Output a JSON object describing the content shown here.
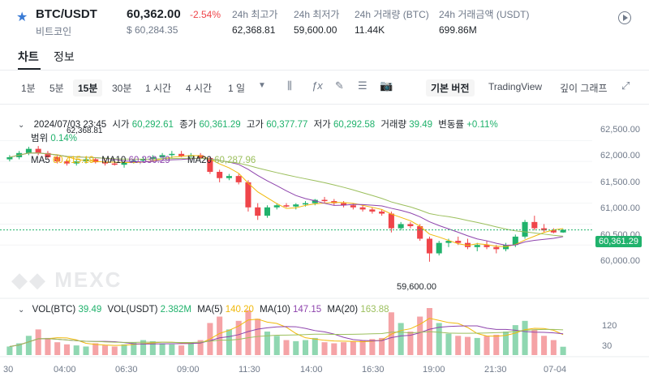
{
  "header": {
    "pair": "BTC/USDT",
    "sub_name": "비트코인",
    "price": "60,362.00",
    "change": "-2.54%",
    "usd_price": "$ 60,284.35",
    "stats": [
      {
        "label": "24h 최고가",
        "value": "62,368.81"
      },
      {
        "label": "24h 최저가",
        "value": "59,600.00"
      },
      {
        "label": "24h 거래량 (BTC)",
        "value": "11.44K"
      },
      {
        "label": "24h 거래금액 (USDT)",
        "value": "699.86M"
      }
    ],
    "star_icon": "star-icon",
    "play_icon": "play-circle-icon"
  },
  "tabs": [
    {
      "label": "차트",
      "active": true
    },
    {
      "label": "정보",
      "active": false
    }
  ],
  "toolbar": {
    "intervals": [
      "1분",
      "5분",
      "15분",
      "30분",
      "1 시간",
      "4 시간",
      "1 일"
    ],
    "active_interval": "15분",
    "views": [
      "기본 버전",
      "TradingView",
      "깊이 그래프"
    ],
    "active_view": "기본 버전"
  },
  "info": {
    "datetime": "2024/07/03 23:45",
    "open_label": "시가",
    "open": "60,292.61",
    "close_label": "종가",
    "close": "60,361.29",
    "high_label": "고가",
    "high": "60,377.77",
    "low_label": "저가",
    "low": "60,292.58",
    "vol_label": "거래량",
    "vol": "39.49",
    "chg_label": "변동률",
    "chg": "+0.11%",
    "range_label": "범위",
    "range": "0.14%",
    "ma5_label": "MA5",
    "ma5": "60,415.19",
    "ma10_label": "MA10",
    "ma10": "60,330.29",
    "ma20_label": "MA20",
    "ma20": "60,287.96"
  },
  "vol_info": {
    "vol_btc_label": "VOL(BTC)",
    "vol_btc": "39.49",
    "vol_usdt_label": "VOL(USDT)",
    "vol_usdt": "2.382M",
    "ma5_label": "MA(5)",
    "ma5": "140.20",
    "ma10_label": "MA(10)",
    "ma10": "147.15",
    "ma20_label": "MA(20)",
    "ma20": "163.88"
  },
  "price_axis": [
    "62,500.00",
    "62,000.00",
    "61,500.00",
    "61,000.00",
    "60,500.00",
    "60,000.00"
  ],
  "current_price_tag": "60,361.29",
  "high_marker": "62,368.81",
  "low_marker": "59,600.00",
  "vol_axis": [
    "120",
    "30"
  ],
  "time_axis": [
    "30",
    "04:00",
    "06:30",
    "09:00",
    "11:30",
    "14:00",
    "16:30",
    "19:00",
    "21:30",
    "07-04"
  ],
  "watermark": "MEXC",
  "colors": {
    "up": "#20b26c",
    "down": "#ef454a",
    "ma5": "#f0b90b",
    "ma10": "#8e44ad",
    "ma20": "#9bbf5c"
  },
  "chart_data": {
    "type": "candlestick",
    "ylim": [
      59500,
      62700
    ],
    "candles": [
      [
        62050,
        62150,
        62000,
        62100
      ],
      [
        62100,
        62250,
        62050,
        62200
      ],
      [
        62200,
        62350,
        62150,
        62300
      ],
      [
        62300,
        62368,
        62150,
        62200
      ],
      [
        62200,
        62250,
        62050,
        62100
      ],
      [
        62100,
        62150,
        61950,
        62000
      ],
      [
        62000,
        62050,
        61900,
        61950
      ],
      [
        61950,
        62050,
        61900,
        62000
      ],
      [
        62000,
        62100,
        61950,
        62050
      ],
      [
        62050,
        62100,
        61950,
        61980
      ],
      [
        61980,
        62050,
        61900,
        61950
      ],
      [
        61950,
        62000,
        61900,
        61920
      ],
      [
        61920,
        62000,
        61850,
        61980
      ],
      [
        61980,
        62050,
        61950,
        62020
      ],
      [
        62020,
        62100,
        61980,
        62050
      ],
      [
        62050,
        62150,
        62000,
        62100
      ],
      [
        62100,
        62200,
        62050,
        62150
      ],
      [
        62150,
        62250,
        62080,
        62180
      ],
      [
        62180,
        62250,
        62100,
        62120
      ],
      [
        62120,
        62200,
        62050,
        62150
      ],
      [
        62150,
        62200,
        62050,
        62080
      ],
      [
        62080,
        62120,
        61700,
        61750
      ],
      [
        61750,
        61800,
        61500,
        61600
      ],
      [
        61600,
        61700,
        61550,
        61650
      ],
      [
        61650,
        61700,
        61450,
        61500
      ],
      [
        61500,
        61550,
        60800,
        60900
      ],
      [
        60900,
        61000,
        60600,
        60700
      ],
      [
        60700,
        60950,
        60650,
        60900
      ],
      [
        60900,
        61000,
        60850,
        60950
      ],
      [
        60950,
        61000,
        60900,
        60920
      ],
      [
        60920,
        61000,
        60850,
        60970
      ],
      [
        60970,
        61050,
        60920,
        61000
      ],
      [
        61000,
        61100,
        60950,
        61080
      ],
      [
        61080,
        61150,
        61000,
        61050
      ],
      [
        61050,
        61100,
        60950,
        61000
      ],
      [
        61000,
        61050,
        60900,
        60950
      ],
      [
        60950,
        61000,
        60850,
        60900
      ],
      [
        60900,
        60950,
        60800,
        60850
      ],
      [
        60850,
        60900,
        60750,
        60800
      ],
      [
        60800,
        60850,
        60700,
        60750
      ],
      [
        60750,
        60800,
        60300,
        60400
      ],
      [
        60400,
        60550,
        60350,
        60500
      ],
      [
        60500,
        60550,
        60400,
        60450
      ],
      [
        60450,
        60500,
        60100,
        60150
      ],
      [
        60150,
        60200,
        59600,
        59800
      ],
      [
        59800,
        60100,
        59750,
        60050
      ],
      [
        60050,
        60150,
        59950,
        60100
      ],
      [
        60100,
        60200,
        60000,
        60050
      ],
      [
        60050,
        60150,
        59900,
        59950
      ],
      [
        59950,
        60050,
        59850,
        60000
      ],
      [
        60000,
        60100,
        59900,
        59950
      ],
      [
        59950,
        60000,
        59800,
        59900
      ],
      [
        59900,
        60050,
        59850,
        60000
      ],
      [
        60000,
        60250,
        59950,
        60200
      ],
      [
        60200,
        60600,
        60150,
        60550
      ],
      [
        60550,
        60700,
        60350,
        60400
      ],
      [
        60400,
        60500,
        60300,
        60350
      ],
      [
        60350,
        60400,
        60280,
        60300
      ],
      [
        60300,
        60380,
        60290,
        60361
      ]
    ],
    "volumes": [
      40,
      55,
      90,
      120,
      80,
      60,
      50,
      45,
      40,
      55,
      45,
      40,
      50,
      60,
      70,
      65,
      55,
      50,
      45,
      60,
      70,
      150,
      180,
      120,
      160,
      210,
      170,
      110,
      90,
      70,
      65,
      70,
      80,
      60,
      55,
      60,
      65,
      70,
      75,
      80,
      200,
      150,
      110,
      180,
      220,
      150,
      100,
      90,
      85,
      80,
      90,
      95,
      110,
      140,
      160,
      120,
      90,
      70,
      39
    ]
  }
}
